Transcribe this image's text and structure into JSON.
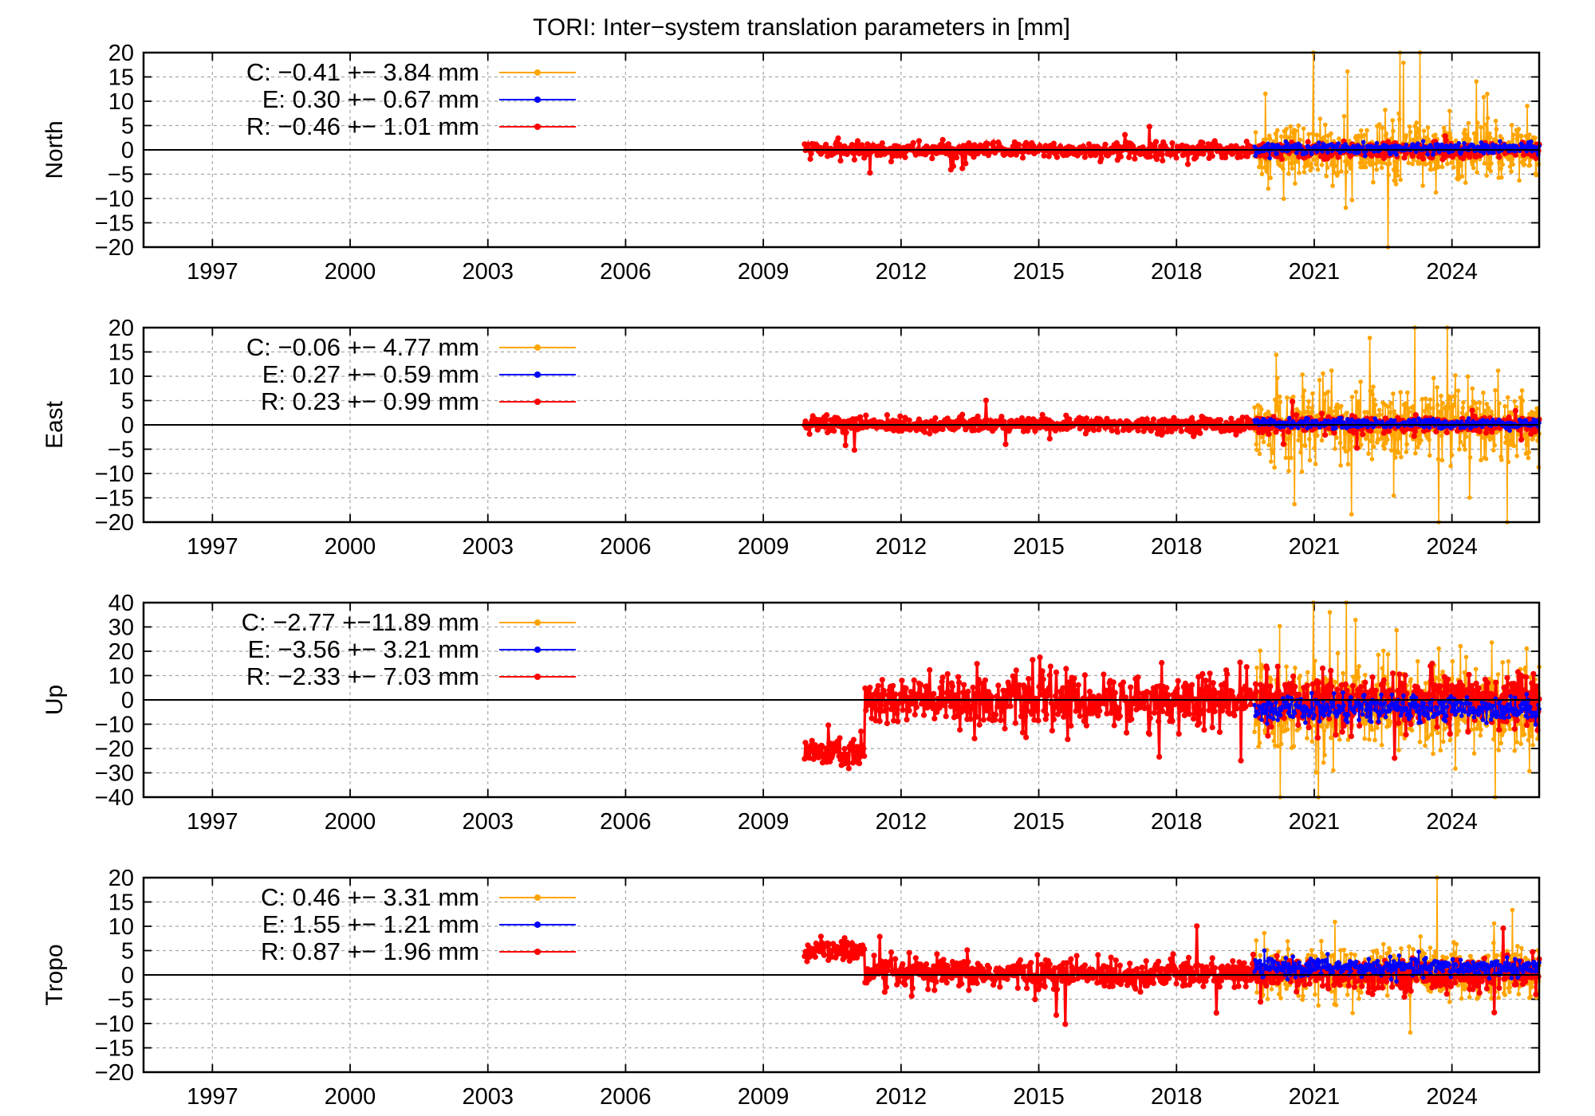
{
  "title": "TORI: Inter−system translation parameters in [mm]",
  "colors": {
    "C": "#ffa500",
    "E": "#0000ff",
    "R": "#ff0000"
  },
  "chart_data": [
    {
      "type": "scatter",
      "ylabel": "North",
      "xlim": [
        1995.5,
        2025.9
      ],
      "ylim": [
        -20,
        20
      ],
      "xticks": [
        "1997",
        "2000",
        "2003",
        "2006",
        "2009",
        "2012",
        "2015",
        "2018",
        "2021",
        "2024"
      ],
      "yticks": [
        "20",
        "15",
        "10",
        "5",
        "0",
        "−5",
        "−10",
        "−15",
        "−20"
      ],
      "grid": true,
      "legend_position": "top-left",
      "series": [
        {
          "key": "C",
          "legend": "C:  −0.41 +− 3.84 mm",
          "start": 2019.7,
          "end": 2025.9,
          "mean": -0.41,
          "std": 3.84
        },
        {
          "key": "E",
          "legend": "E:  0.30 +− 0.67 mm",
          "start": 2019.7,
          "end": 2025.9,
          "mean": 0.3,
          "std": 0.67
        },
        {
          "key": "R",
          "legend": "R:  −0.46 +− 1.01 mm",
          "start": 2009.9,
          "end": 2025.9,
          "mean": -0.46,
          "std": 1.01
        }
      ]
    },
    {
      "type": "scatter",
      "ylabel": "East",
      "xlim": [
        1995.5,
        2025.9
      ],
      "ylim": [
        -20,
        20
      ],
      "xticks": [
        "1997",
        "2000",
        "2003",
        "2006",
        "2009",
        "2012",
        "2015",
        "2018",
        "2021",
        "2024"
      ],
      "yticks": [
        "20",
        "15",
        "10",
        "5",
        "0",
        "−5",
        "−10",
        "−15",
        "−20"
      ],
      "grid": true,
      "legend_position": "top-left",
      "series": [
        {
          "key": "C",
          "legend": "C:  −0.06 +− 4.77 mm",
          "start": 2019.7,
          "end": 2025.9,
          "mean": -0.06,
          "std": 4.77
        },
        {
          "key": "E",
          "legend": "E:  0.27 +− 0.59 mm",
          "start": 2019.7,
          "end": 2025.9,
          "mean": 0.27,
          "std": 0.59
        },
        {
          "key": "R",
          "legend": "R:  0.23 +− 0.99 mm",
          "start": 2009.9,
          "end": 2025.9,
          "mean": 0.23,
          "std": 0.99
        }
      ]
    },
    {
      "type": "scatter",
      "ylabel": "Up",
      "xlim": [
        1995.5,
        2025.9
      ],
      "ylim": [
        -40,
        40
      ],
      "xticks": [
        "1997",
        "2000",
        "2003",
        "2006",
        "2009",
        "2012",
        "2015",
        "2018",
        "2021",
        "2024"
      ],
      "yticks": [
        "40",
        "30",
        "20",
        "10",
        "0",
        "−10",
        "−20",
        "−30",
        "−40"
      ],
      "grid": true,
      "legend_position": "top-left",
      "series": [
        {
          "key": "C",
          "legend": "C:  −2.77 +−11.89 mm",
          "start": 2019.7,
          "end": 2025.9,
          "mean": -2.77,
          "std": 11.89
        },
        {
          "key": "E",
          "legend": "E:  −3.56 +− 3.21 mm",
          "start": 2019.7,
          "end": 2025.9,
          "mean": -3.56,
          "std": 3.21
        },
        {
          "key": "R",
          "legend": "R:  −2.33 +− 7.03 mm",
          "start": 2009.9,
          "end": 2025.9,
          "mean": -2.33,
          "std": 7.03
        }
      ]
    },
    {
      "type": "scatter",
      "ylabel": "Tropo",
      "xlim": [
        1995.5,
        2025.9
      ],
      "ylim": [
        -20,
        20
      ],
      "xticks": [
        "1997",
        "2000",
        "2003",
        "2006",
        "2009",
        "2012",
        "2015",
        "2018",
        "2021",
        "2024"
      ],
      "yticks": [
        "20",
        "15",
        "10",
        "5",
        "0",
        "−5",
        "−10",
        "−15",
        "−20"
      ],
      "grid": true,
      "legend_position": "top-left",
      "series": [
        {
          "key": "C",
          "legend": "C:  0.46 +− 3.31 mm",
          "start": 2019.7,
          "end": 2025.9,
          "mean": 0.46,
          "std": 3.31
        },
        {
          "key": "E",
          "legend": "E:  1.55 +− 1.21 mm",
          "start": 2019.7,
          "end": 2025.9,
          "mean": 1.55,
          "std": 1.21
        },
        {
          "key": "R",
          "legend": "R:  0.87 +− 1.96 mm",
          "start": 2009.9,
          "end": 2025.9,
          "mean": 0.87,
          "std": 1.96
        }
      ]
    }
  ]
}
